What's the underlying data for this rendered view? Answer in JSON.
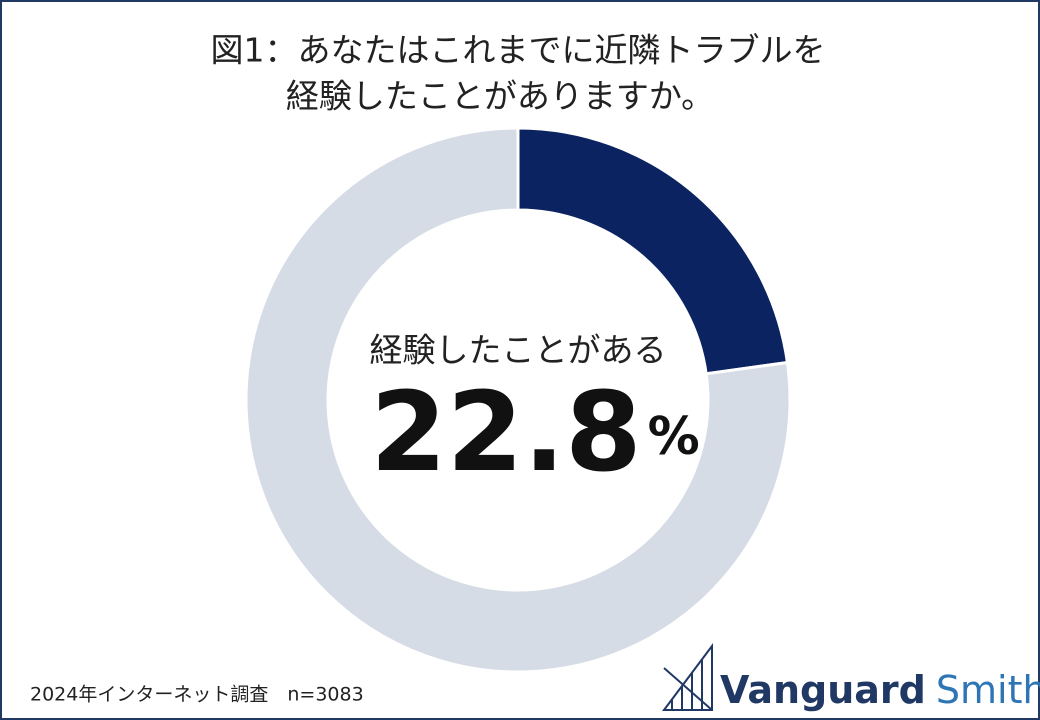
{
  "chart_data": {
    "type": "donut",
    "title_lines": [
      "図1：あなたはこれまでに近隣トラブルを",
      "経験したことがありますか。"
    ],
    "categories": [
      "経験したことがある",
      null
    ],
    "values": [
      22.8,
      77.2
    ],
    "value_labels": [
      "22.8%",
      null
    ],
    "colors": [
      "#0b2360",
      "#d6dce5"
    ],
    "footnote": "2024年インターネット調査　n=3083",
    "logo": {
      "bold": "Vanguard",
      "light": "Smith"
    }
  }
}
